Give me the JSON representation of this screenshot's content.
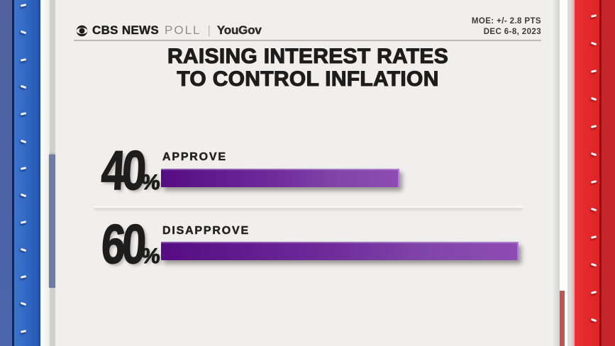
{
  "header": {
    "brand": {
      "cbs": "CBS NEWS",
      "poll": "POLL",
      "separator": "|",
      "partner": "YouGov"
    },
    "moe_line1": "MOE: +/- 2.8 PTS",
    "moe_line2": "DEC 6-8, 2023"
  },
  "title": {
    "line1": "RAISING INTEREST RATES",
    "line2": "TO CONTROL INFLATION"
  },
  "chart_data": {
    "type": "bar",
    "orientation": "horizontal",
    "title": "RAISING INTEREST RATES TO CONTROL INFLATION",
    "categories": [
      "APPROVE",
      "DISAPPROVE"
    ],
    "values": [
      40,
      60
    ],
    "unit": "%",
    "xlim": [
      0,
      100
    ],
    "legend": "none",
    "grid": false,
    "bar_gradient": [
      "#560c83",
      "#8d4cb5"
    ],
    "annotations": [
      "MOE: +/- 2.8 PTS",
      "DEC 6-8, 2023"
    ]
  },
  "colors": {
    "background": "#f0efed",
    "bar_gradient_start": "#560c83",
    "bar_gradient_end": "#8d4cb5",
    "left_column_blue": "#2e66c2",
    "right_column_red": "#df2327",
    "text_dark": "#1d1d1d",
    "rule_gray": "#b9b9b7"
  }
}
